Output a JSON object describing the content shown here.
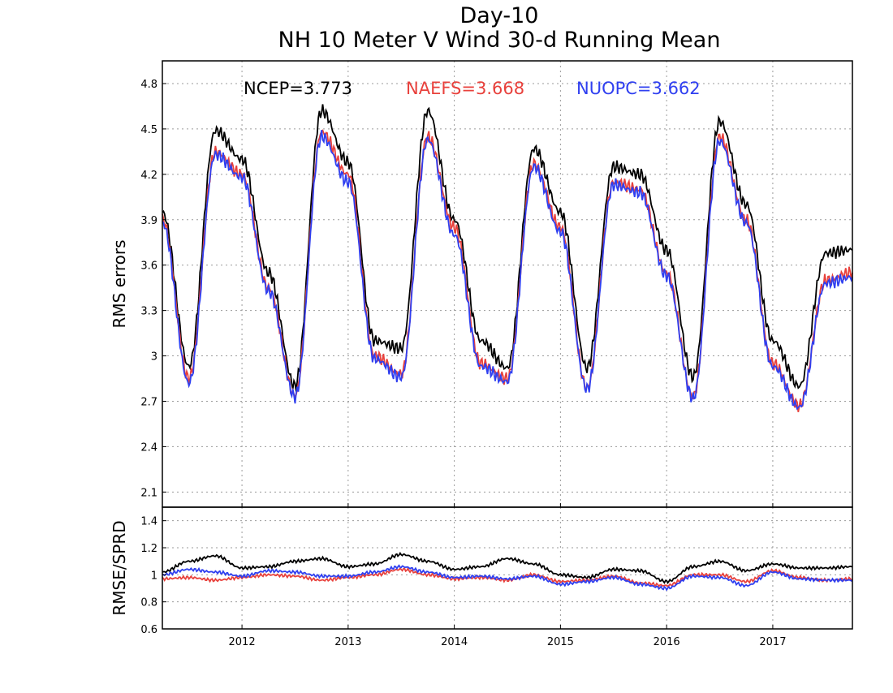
{
  "title_line1": "Day-10",
  "title_line2": "NH 10 Meter V Wind 30-d Running Mean",
  "colors": {
    "NCEP": "#000000",
    "NAEFS": "#e8413c",
    "NUOPC": "#2f3ff0"
  },
  "chart_data": [
    {
      "type": "line",
      "panel": "top",
      "ylabel": "RMS errors",
      "xlabel": "",
      "ylim": [
        2.0,
        4.95
      ],
      "yticks": [
        "2.1",
        "2.4",
        "2.7",
        "3",
        "3.3",
        "3.6",
        "3.9",
        "4.2",
        "4.5",
        "4.8"
      ],
      "xticks": [
        "2012",
        "2013",
        "2014",
        "2015",
        "2016",
        "2017"
      ],
      "xlim": [
        2011.25,
        2017.75
      ],
      "grid": true,
      "legend_placement": "top",
      "stats": [
        {
          "label": "NCEP=3.773",
          "series": "NCEP"
        },
        {
          "label": "NAEFS=3.668",
          "series": "NAEFS"
        },
        {
          "label": "NUOPC=3.662",
          "series": "NUOPC"
        }
      ],
      "x": [
        2011.25,
        2011.5,
        2011.75,
        2012.0,
        2012.25,
        2012.5,
        2012.75,
        2013.0,
        2013.25,
        2013.5,
        2013.75,
        2014.0,
        2014.25,
        2014.5,
        2014.75,
        2015.0,
        2015.25,
        2015.5,
        2015.75,
        2016.0,
        2016.25,
        2016.5,
        2016.75,
        2017.0,
        2017.25,
        2017.5,
        2017.75
      ],
      "series": [
        {
          "name": "NCEP",
          "values": [
            3.95,
            2.93,
            4.49,
            4.3,
            3.55,
            2.8,
            4.62,
            4.28,
            3.1,
            3.05,
            4.62,
            3.9,
            3.1,
            2.92,
            4.37,
            3.95,
            2.92,
            4.25,
            4.2,
            3.7,
            2.86,
            4.55,
            4.0,
            3.1,
            2.8,
            3.68,
            3.7
          ]
        },
        {
          "name": "NAEFS",
          "values": [
            3.9,
            2.85,
            4.35,
            4.2,
            3.45,
            2.74,
            4.48,
            4.2,
            3.0,
            2.88,
            4.45,
            3.85,
            2.95,
            2.85,
            4.27,
            3.85,
            2.79,
            4.15,
            4.1,
            3.55,
            2.73,
            4.45,
            3.9,
            2.95,
            2.67,
            3.5,
            3.55
          ]
        },
        {
          "name": "NUOPC",
          "values": [
            3.88,
            2.82,
            4.33,
            4.18,
            3.43,
            2.73,
            4.45,
            4.15,
            2.98,
            2.86,
            4.43,
            3.8,
            2.93,
            2.83,
            4.25,
            3.82,
            2.78,
            4.13,
            4.08,
            3.53,
            2.72,
            4.42,
            3.88,
            2.93,
            2.66,
            3.48,
            3.52
          ]
        }
      ]
    },
    {
      "type": "line",
      "panel": "bottom",
      "ylabel": "RMSE/SPRD",
      "xlabel": "",
      "ylim": [
        0.6,
        1.5
      ],
      "yticks": [
        "0.6",
        "0.8",
        "1",
        "1.2",
        "1.4"
      ],
      "xticks": [
        "2012",
        "2013",
        "2014",
        "2015",
        "2016",
        "2017"
      ],
      "xlim": [
        2011.25,
        2017.75
      ],
      "grid": true,
      "x": [
        2011.25,
        2011.5,
        2011.75,
        2012.0,
        2012.25,
        2012.5,
        2012.75,
        2013.0,
        2013.25,
        2013.5,
        2013.75,
        2014.0,
        2014.25,
        2014.5,
        2014.75,
        2015.0,
        2015.25,
        2015.5,
        2015.75,
        2016.0,
        2016.25,
        2016.5,
        2016.75,
        2017.0,
        2017.25,
        2017.5,
        2017.75
      ],
      "series": [
        {
          "name": "NCEP",
          "values": [
            1.02,
            1.1,
            1.14,
            1.05,
            1.06,
            1.1,
            1.12,
            1.06,
            1.08,
            1.15,
            1.1,
            1.04,
            1.06,
            1.12,
            1.08,
            1.0,
            0.98,
            1.04,
            1.03,
            0.95,
            1.06,
            1.1,
            1.03,
            1.08,
            1.05,
            1.05,
            1.06
          ]
        },
        {
          "name": "NAEFS",
          "values": [
            0.97,
            0.98,
            0.96,
            0.98,
            1.0,
            0.99,
            0.96,
            0.98,
            1.0,
            1.04,
            1.0,
            0.97,
            0.98,
            0.96,
            1.0,
            0.95,
            0.96,
            0.99,
            0.94,
            0.92,
            1.0,
            1.0,
            0.95,
            1.03,
            0.98,
            0.96,
            0.97
          ]
        },
        {
          "name": "NUOPC",
          "values": [
            1.0,
            1.04,
            1.02,
            0.99,
            1.03,
            1.02,
            0.99,
            0.99,
            1.02,
            1.06,
            1.02,
            0.98,
            0.99,
            0.97,
            0.99,
            0.93,
            0.95,
            0.98,
            0.93,
            0.9,
            0.99,
            0.98,
            0.92,
            1.02,
            0.97,
            0.96,
            0.96
          ]
        }
      ]
    }
  ]
}
